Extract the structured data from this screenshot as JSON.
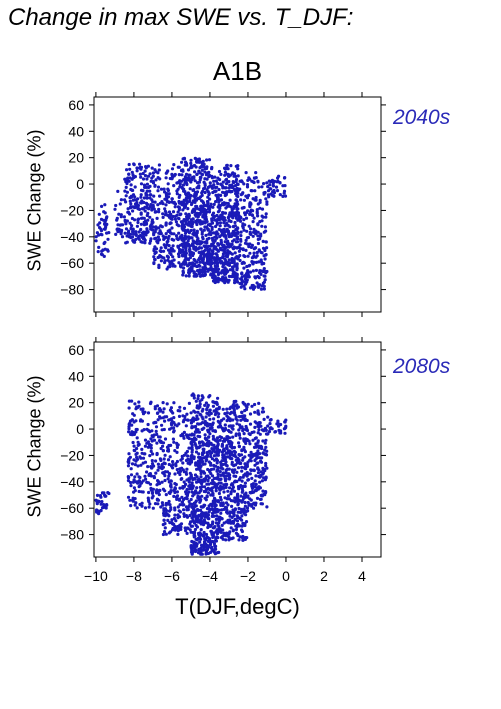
{
  "figure": {
    "title": "Change in max SWE vs. T_DJF:",
    "scenario": "A1B",
    "xlabel": "T(DJF,degC)",
    "point_color": "#1a1ab8",
    "label_color": "#2a2ab8"
  },
  "chart_data": [
    {
      "type": "scatter",
      "period": "2040s",
      "ylabel": "SWE Change (%)",
      "xlim": [
        -10.1,
        5.0
      ],
      "ylim": [
        -97,
        66
      ],
      "xticks": [
        -10,
        -8,
        -6,
        -4,
        -2,
        0,
        2,
        4
      ],
      "yticks": [
        60,
        40,
        20,
        0,
        -20,
        -40,
        -60,
        -80
      ],
      "xtick_labels_shown": false,
      "clusters": [
        {
          "x": [
            -10.0,
            -9.3
          ],
          "y": [
            -55,
            -15
          ],
          "n": 45
        },
        {
          "x": [
            -9.0,
            -8.5
          ],
          "y": [
            -40,
            -5
          ],
          "n": 25
        },
        {
          "x": [
            -8.5,
            -7.0
          ],
          "y": [
            -45,
            16
          ],
          "n": 220
        },
        {
          "x": [
            -7.0,
            -5.5
          ],
          "y": [
            -65,
            15
          ],
          "n": 250
        },
        {
          "x": [
            -5.5,
            -4.0
          ],
          "y": [
            -70,
            20
          ],
          "n": 550
        },
        {
          "x": [
            -4.0,
            -2.5
          ],
          "y": [
            -75,
            15
          ],
          "n": 500
        },
        {
          "x": [
            -2.5,
            -1.0
          ],
          "y": [
            -80,
            10
          ],
          "n": 260
        },
        {
          "x": [
            -1.0,
            0.0
          ],
          "y": [
            -10,
            6
          ],
          "n": 40
        }
      ]
    },
    {
      "type": "scatter",
      "period": "2080s",
      "ylabel": "SWE Change (%)",
      "xlim": [
        -10.1,
        5.0
      ],
      "ylim": [
        -97,
        66
      ],
      "xticks": [
        -10,
        -8,
        -6,
        -4,
        -2,
        0,
        2,
        4
      ],
      "xtick_labels": [
        "−10",
        "−8",
        "−6",
        "−4",
        "−2",
        "0",
        "2",
        "4"
      ],
      "yticks": [
        60,
        40,
        20,
        0,
        -20,
        -40,
        -60,
        -80
      ],
      "clusters": [
        {
          "x": [
            -10.0,
            -9.3
          ],
          "y": [
            -65,
            -45
          ],
          "n": 35
        },
        {
          "x": [
            -8.3,
            -6.5
          ],
          "y": [
            -60,
            22
          ],
          "n": 250
        },
        {
          "x": [
            -6.5,
            -5.0
          ],
          "y": [
            -80,
            21
          ],
          "n": 280
        },
        {
          "x": [
            -5.0,
            -3.5
          ],
          "y": [
            -95,
            27
          ],
          "n": 650
        },
        {
          "x": [
            -3.5,
            -2.0
          ],
          "y": [
            -85,
            23
          ],
          "n": 450
        },
        {
          "x": [
            -2.0,
            -1.0
          ],
          "y": [
            -60,
            22
          ],
          "n": 180
        },
        {
          "x": [
            -1.0,
            0.0
          ],
          "y": [
            -5,
            10
          ],
          "n": 30
        }
      ]
    }
  ]
}
